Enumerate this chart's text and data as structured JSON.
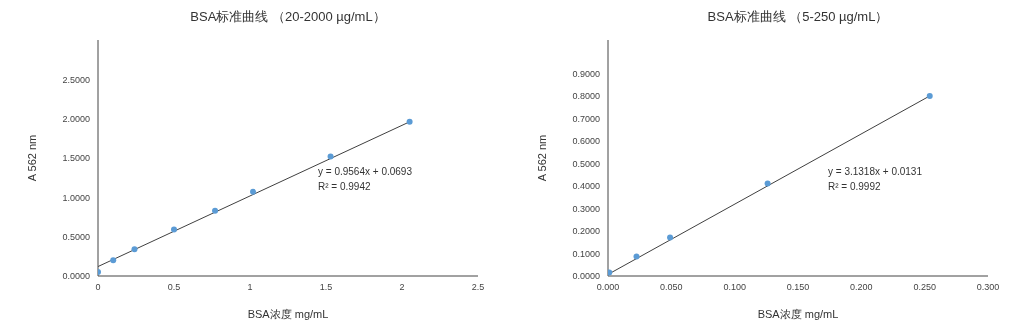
{
  "chart_data": [
    {
      "type": "scatter",
      "title": "BSA标准曲线 （20-2000 µg/mL）",
      "xlabel": "BSA浓度 mg/mL",
      "ylabel": "A  562 nm",
      "xlim": [
        0,
        2.5
      ],
      "xticks": [
        0,
        0.5,
        1,
        1.5,
        2,
        2.5
      ],
      "ylim": [
        0,
        3
      ],
      "yticks": [
        {
          "value": 0,
          "label": "0.0000"
        },
        {
          "value": 0.5,
          "label": "0.5000"
        },
        {
          "value": 1,
          "label": "1.0000"
        },
        {
          "value": 1.5,
          "label": "1.5000"
        },
        {
          "value": 2,
          "label": "2.0000"
        },
        {
          "value": 2.5,
          "label": "2.5000"
        }
      ],
      "grid": false,
      "series": [
        {
          "type": "line",
          "color": "#404040",
          "marker": "none",
          "x": [
            0,
            2.05
          ],
          "values": [
            0.12,
            1.96
          ]
        },
        {
          "color": "#5b9bd5",
          "marker": "circle",
          "x": [
            0,
            0.1,
            0.24,
            0.5,
            0.77,
            1.02,
            1.53,
            2.05
          ],
          "values": [
            0.05,
            0.2,
            0.34,
            0.59,
            0.83,
            1.07,
            1.52,
            1.96
          ]
        }
      ],
      "annotations": [
        "y = 0.9564x + 0.0693",
        "R² = 0.9942"
      ]
    },
    {
      "type": "scatter",
      "title": "BSA标准曲线 （5-250 µg/mL）",
      "xlabel": "BSA浓度 mg/mL",
      "ylabel": "A  562 nm",
      "xlim": [
        0,
        0.3
      ],
      "xticks": [
        {
          "value": 0,
          "label": "0.000"
        },
        {
          "value": 0.05,
          "label": "0.050"
        },
        {
          "value": 0.1,
          "label": "0.100"
        },
        {
          "value": 0.15,
          "label": "0.150"
        },
        {
          "value": 0.2,
          "label": "0.200"
        },
        {
          "value": 0.25,
          "label": "0.250"
        },
        {
          "value": 0.3,
          "label": "0.300"
        }
      ],
      "ylim": [
        0,
        1.05
      ],
      "yticks": [
        {
          "value": 0,
          "label": "0.0000"
        },
        {
          "value": 0.1,
          "label": "0.1000"
        },
        {
          "value": 0.2,
          "label": "0.2000"
        },
        {
          "value": 0.3,
          "label": "0.3000"
        },
        {
          "value": 0.4,
          "label": "0.4000"
        },
        {
          "value": 0.5,
          "label": "0.5000"
        },
        {
          "value": 0.6,
          "label": "0.6000"
        },
        {
          "value": 0.7,
          "label": "0.7000"
        },
        {
          "value": 0.8,
          "label": "0.8000"
        },
        {
          "value": 0.9,
          "label": "0.9000"
        }
      ],
      "grid": false,
      "series": [
        {
          "type": "line",
          "color": "#404040",
          "marker": "none",
          "x": [
            0,
            0.254
          ],
          "values": [
            0.007,
            0.801
          ]
        },
        {
          "color": "#5b9bd5",
          "marker": "circle",
          "x": [
            0.001,
            0.0225,
            0.049,
            0.126,
            0.254
          ],
          "values": [
            0.016,
            0.087,
            0.171,
            0.412,
            0.801
          ]
        }
      ],
      "annotations": [
        "y = 3.1318x + 0.0131",
        "R² = 0.9992"
      ]
    }
  ]
}
